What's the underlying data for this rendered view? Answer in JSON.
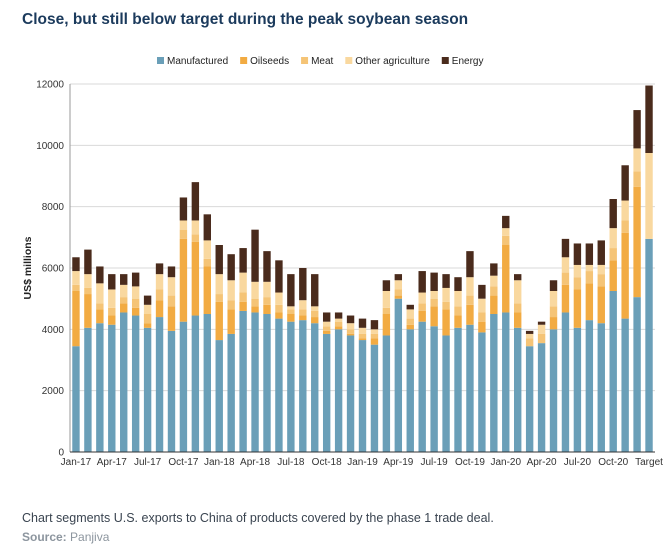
{
  "title": "Close, but still below target during the peak soybean season",
  "caption": "Chart segments U.S. exports to China of products covered by the phase 1 trade deal.",
  "source_label": "Source:",
  "source_value": "Panjiva",
  "chart_data": {
    "type": "bar",
    "stacked": true,
    "ylabel": "US$ millions",
    "ylim": [
      0,
      12000
    ],
    "yticks": [
      0,
      2000,
      4000,
      6000,
      8000,
      10000,
      12000
    ],
    "grid": true,
    "legend_position": "top",
    "x_tick_labels": [
      {
        "index": 0,
        "label": "Jan-17"
      },
      {
        "index": 3,
        "label": "Apr-17"
      },
      {
        "index": 6,
        "label": "Jul-17"
      },
      {
        "index": 9,
        "label": "Oct-17"
      },
      {
        "index": 12,
        "label": "Jan-18"
      },
      {
        "index": 15,
        "label": "Apr-18"
      },
      {
        "index": 18,
        "label": "Jul-18"
      },
      {
        "index": 21,
        "label": "Oct-18"
      },
      {
        "index": 24,
        "label": "Jan-19"
      },
      {
        "index": 27,
        "label": "Apr-19"
      },
      {
        "index": 30,
        "label": "Jul-19"
      },
      {
        "index": 33,
        "label": "Oct-19"
      },
      {
        "index": 36,
        "label": "Jan-20"
      },
      {
        "index": 39,
        "label": "Apr-20"
      },
      {
        "index": 42,
        "label": "Jul-20"
      },
      {
        "index": 45,
        "label": "Oct-20"
      },
      {
        "index": 48,
        "label": "Target"
      }
    ],
    "categories": [
      "Jan-17",
      "Feb-17",
      "Mar-17",
      "Apr-17",
      "May-17",
      "Jun-17",
      "Jul-17",
      "Aug-17",
      "Sep-17",
      "Oct-17",
      "Nov-17",
      "Dec-17",
      "Jan-18",
      "Feb-18",
      "Mar-18",
      "Apr-18",
      "May-18",
      "Jun-18",
      "Jul-18",
      "Aug-18",
      "Sep-18",
      "Oct-18",
      "Nov-18",
      "Dec-18",
      "Jan-19",
      "Feb-19",
      "Mar-19",
      "Apr-19",
      "May-19",
      "Jun-19",
      "Jul-19",
      "Aug-19",
      "Sep-19",
      "Oct-19",
      "Nov-19",
      "Dec-19",
      "Jan-20",
      "Feb-20",
      "Mar-20",
      "Apr-20",
      "May-20",
      "Jun-20",
      "Jul-20",
      "Aug-20",
      "Sep-20",
      "Oct-20",
      "Nov-20",
      "Dec-20",
      "Target"
    ],
    "series": [
      {
        "name": "Manufactured",
        "color": "#6a9fb8",
        "values": [
          3450,
          4050,
          4200,
          4150,
          4550,
          4450,
          4050,
          4400,
          3950,
          4250,
          4450,
          4500,
          3650,
          3850,
          4600,
          4550,
          4500,
          4350,
          4250,
          4300,
          4200,
          3850,
          4000,
          3800,
          3650,
          3500,
          3800,
          5000,
          4000,
          4250,
          4100,
          3800,
          4050,
          4150,
          3900,
          4500,
          4550,
          4050,
          3450,
          3550,
          4000,
          4550,
          4050,
          4300,
          4200,
          5250,
          4350,
          5050,
          6950
        ]
      },
      {
        "name": "Oilseeds",
        "color": "#f2ab42",
        "values": [
          1800,
          1100,
          450,
          300,
          300,
          250,
          150,
          550,
          800,
          2700,
          2400,
          1550,
          1250,
          800,
          300,
          200,
          300,
          200,
          250,
          150,
          200,
          100,
          100,
          50,
          50,
          200,
          700,
          100,
          150,
          350,
          650,
          850,
          400,
          650,
          350,
          600,
          2200,
          500,
          0,
          0,
          400,
          900,
          1250,
          1200,
          1200,
          1000,
          2800,
          3600,
          0
        ]
      },
      {
        "name": "Meat",
        "color": "#f5c476",
        "values": [
          200,
          200,
          200,
          250,
          200,
          300,
          300,
          350,
          350,
          300,
          250,
          250,
          250,
          300,
          300,
          250,
          250,
          250,
          150,
          200,
          200,
          150,
          150,
          150,
          150,
          150,
          200,
          200,
          200,
          250,
          250,
          250,
          300,
          300,
          300,
          300,
          300,
          300,
          250,
          300,
          350,
          400,
          400,
          400,
          400,
          400,
          400,
          500,
          0
        ]
      },
      {
        "name": "Other agriculture",
        "color": "#f9d89f",
        "values": [
          450,
          450,
          650,
          600,
          400,
          400,
          300,
          500,
          600,
          300,
          450,
          600,
          650,
          650,
          650,
          550,
          500,
          400,
          100,
          300,
          150,
          150,
          100,
          200,
          200,
          150,
          550,
          300,
          300,
          350,
          250,
          450,
          500,
          600,
          450,
          350,
          250,
          750,
          150,
          300,
          500,
          500,
          400,
          200,
          300,
          650,
          650,
          750,
          2800
        ]
      },
      {
        "name": "Energy",
        "color": "#4a2b1c",
        "values": [
          450,
          800,
          550,
          500,
          350,
          450,
          300,
          350,
          350,
          750,
          1250,
          850,
          950,
          850,
          800,
          1700,
          1000,
          1050,
          1050,
          1050,
          1050,
          300,
          200,
          250,
          300,
          300,
          350,
          200,
          150,
          700,
          600,
          450,
          450,
          850,
          450,
          400,
          400,
          200,
          100,
          100,
          350,
          600,
          700,
          700,
          800,
          950,
          1150,
          1250,
          2200
        ]
      }
    ]
  }
}
